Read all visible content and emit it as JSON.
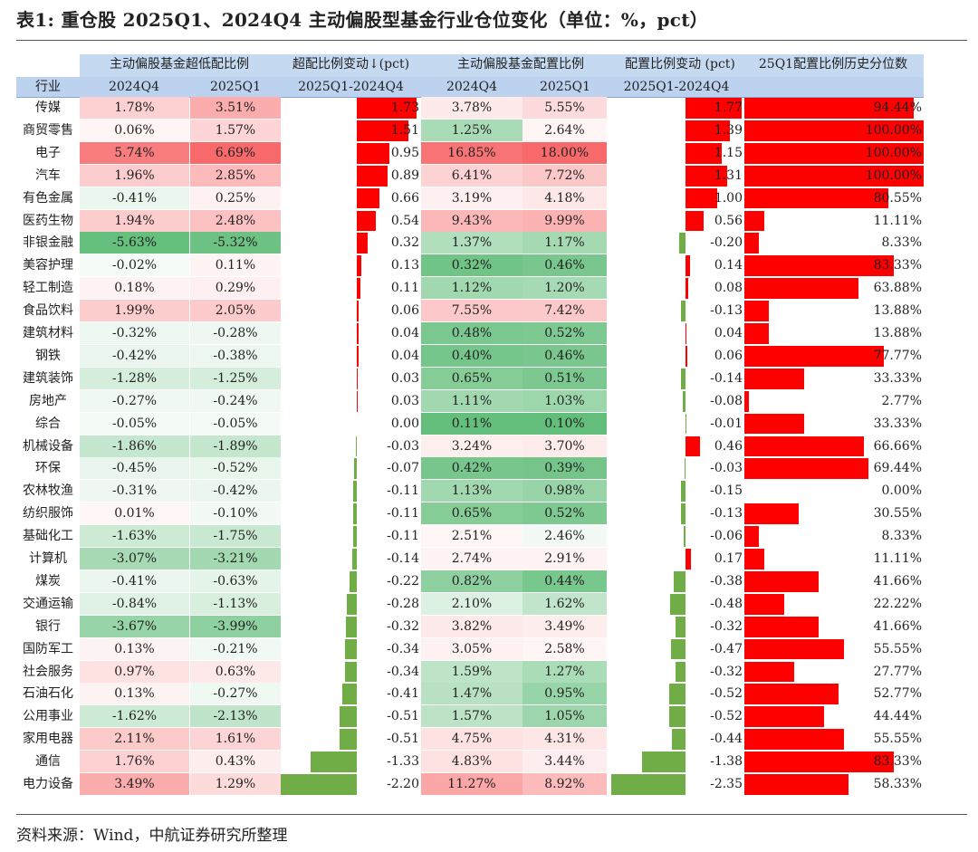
{
  "title": "表1: 重仓股 2025Q1、2024Q4 主动偏股型基金行业仓位变化（单位：%，pct）",
  "header": {
    "group1": "主动偏股基金超低配比例",
    "group2": "超配比例变动↓(pct)",
    "group3": "主动偏股基金配置比例",
    "group4": "配置比例变动 (pct)",
    "group5": "25Q1配置比例历史分位数",
    "industry": "行业",
    "q4": "2024Q4",
    "q1": "2025Q1",
    "delta": "2025Q1-2024Q4",
    "q4b": "2024Q4",
    "q1b": "2025Q1",
    "deltab": "2025Q1-2024Q4"
  },
  "colors": {
    "positive": "#ff0000",
    "negative": "#70ad47",
    "header": "#c5d9f1"
  },
  "rows": [
    {
      "industry": "传媒",
      "ow_q4": "1.78%",
      "ow_q1": "3.51%",
      "ow_chg": "1.73",
      "w_q4": "3.78%",
      "w_q1": "5.55%",
      "w_chg": "1.77",
      "pct": "94.44%"
    },
    {
      "industry": "商贸零售",
      "ow_q4": "0.06%",
      "ow_q1": "1.57%",
      "ow_chg": "1.51",
      "w_q4": "1.25%",
      "w_q1": "2.64%",
      "w_chg": "1.39",
      "pct": "100.00%"
    },
    {
      "industry": "电子",
      "ow_q4": "5.74%",
      "ow_q1": "6.69%",
      "ow_chg": "0.95",
      "w_q4": "16.85%",
      "w_q1": "18.00%",
      "w_chg": "1.15",
      "pct": "100.00%"
    },
    {
      "industry": "汽车",
      "ow_q4": "1.96%",
      "ow_q1": "2.85%",
      "ow_chg": "0.89",
      "w_q4": "6.41%",
      "w_q1": "7.72%",
      "w_chg": "1.31",
      "pct": "100.00%"
    },
    {
      "industry": "有色金属",
      "ow_q4": "-0.41%",
      "ow_q1": "0.25%",
      "ow_chg": "0.66",
      "w_q4": "3.19%",
      "w_q1": "4.18%",
      "w_chg": "1.00",
      "pct": "80.55%"
    },
    {
      "industry": "医药生物",
      "ow_q4": "1.94%",
      "ow_q1": "2.48%",
      "ow_chg": "0.54",
      "w_q4": "9.43%",
      "w_q1": "9.99%",
      "w_chg": "0.56",
      "pct": "11.11%"
    },
    {
      "industry": "非银金融",
      "ow_q4": "-5.63%",
      "ow_q1": "-5.32%",
      "ow_chg": "0.32",
      "w_q4": "1.37%",
      "w_q1": "1.17%",
      "w_chg": "-0.20",
      "pct": "8.33%"
    },
    {
      "industry": "美容护理",
      "ow_q4": "-0.02%",
      "ow_q1": "0.11%",
      "ow_chg": "0.13",
      "w_q4": "0.32%",
      "w_q1": "0.46%",
      "w_chg": "0.14",
      "pct": "83.33%"
    },
    {
      "industry": "轻工制造",
      "ow_q4": "0.18%",
      "ow_q1": "0.29%",
      "ow_chg": "0.11",
      "w_q4": "1.12%",
      "w_q1": "1.20%",
      "w_chg": "0.08",
      "pct": "63.88%"
    },
    {
      "industry": "食品饮料",
      "ow_q4": "1.99%",
      "ow_q1": "2.05%",
      "ow_chg": "0.06",
      "w_q4": "7.55%",
      "w_q1": "7.42%",
      "w_chg": "-0.13",
      "pct": "13.88%"
    },
    {
      "industry": "建筑材料",
      "ow_q4": "-0.32%",
      "ow_q1": "-0.28%",
      "ow_chg": "0.04",
      "w_q4": "0.48%",
      "w_q1": "0.52%",
      "w_chg": "0.04",
      "pct": "13.88%"
    },
    {
      "industry": "钢铁",
      "ow_q4": "-0.42%",
      "ow_q1": "-0.38%",
      "ow_chg": "0.04",
      "w_q4": "0.40%",
      "w_q1": "0.46%",
      "w_chg": "0.06",
      "pct": "77.77%"
    },
    {
      "industry": "建筑装饰",
      "ow_q4": "-1.28%",
      "ow_q1": "-1.25%",
      "ow_chg": "0.03",
      "w_q4": "0.65%",
      "w_q1": "0.51%",
      "w_chg": "-0.14",
      "pct": "33.33%"
    },
    {
      "industry": "房地产",
      "ow_q4": "-0.27%",
      "ow_q1": "-0.24%",
      "ow_chg": "0.03",
      "w_q4": "1.11%",
      "w_q1": "1.03%",
      "w_chg": "-0.08",
      "pct": "2.77%"
    },
    {
      "industry": "综合",
      "ow_q4": "-0.05%",
      "ow_q1": "-0.05%",
      "ow_chg": "0.00",
      "w_q4": "0.11%",
      "w_q1": "0.10%",
      "w_chg": "-0.01",
      "pct": "33.33%"
    },
    {
      "industry": "机械设备",
      "ow_q4": "-1.86%",
      "ow_q1": "-1.89%",
      "ow_chg": "-0.03",
      "w_q4": "3.24%",
      "w_q1": "3.70%",
      "w_chg": "0.46",
      "pct": "66.66%"
    },
    {
      "industry": "环保",
      "ow_q4": "-0.45%",
      "ow_q1": "-0.52%",
      "ow_chg": "-0.07",
      "w_q4": "0.42%",
      "w_q1": "0.39%",
      "w_chg": "-0.03",
      "pct": "69.44%"
    },
    {
      "industry": "农林牧渔",
      "ow_q4": "-0.31%",
      "ow_q1": "-0.42%",
      "ow_chg": "-0.11",
      "w_q4": "1.13%",
      "w_q1": "0.98%",
      "w_chg": "-0.15",
      "pct": "0.00%"
    },
    {
      "industry": "纺织服饰",
      "ow_q4": "0.01%",
      "ow_q1": "-0.10%",
      "ow_chg": "-0.11",
      "w_q4": "0.65%",
      "w_q1": "0.52%",
      "w_chg": "-0.13",
      "pct": "30.55%"
    },
    {
      "industry": "基础化工",
      "ow_q4": "-1.63%",
      "ow_q1": "-1.75%",
      "ow_chg": "-0.11",
      "w_q4": "2.51%",
      "w_q1": "2.46%",
      "w_chg": "-0.06",
      "pct": "8.33%"
    },
    {
      "industry": "计算机",
      "ow_q4": "-3.07%",
      "ow_q1": "-3.21%",
      "ow_chg": "-0.14",
      "w_q4": "2.74%",
      "w_q1": "2.91%",
      "w_chg": "0.17",
      "pct": "11.11%"
    },
    {
      "industry": "煤炭",
      "ow_q4": "-0.41%",
      "ow_q1": "-0.63%",
      "ow_chg": "-0.22",
      "w_q4": "0.82%",
      "w_q1": "0.44%",
      "w_chg": "-0.38",
      "pct": "41.66%"
    },
    {
      "industry": "交通运输",
      "ow_q4": "-0.84%",
      "ow_q1": "-1.13%",
      "ow_chg": "-0.28",
      "w_q4": "2.10%",
      "w_q1": "1.62%",
      "w_chg": "-0.48",
      "pct": "22.22%"
    },
    {
      "industry": "银行",
      "ow_q4": "-3.67%",
      "ow_q1": "-3.99%",
      "ow_chg": "-0.32",
      "w_q4": "3.82%",
      "w_q1": "3.49%",
      "w_chg": "-0.32",
      "pct": "41.66%"
    },
    {
      "industry": "国防军工",
      "ow_q4": "0.13%",
      "ow_q1": "-0.21%",
      "ow_chg": "-0.34",
      "w_q4": "3.05%",
      "w_q1": "2.58%",
      "w_chg": "-0.47",
      "pct": "55.55%"
    },
    {
      "industry": "社会服务",
      "ow_q4": "0.97%",
      "ow_q1": "0.63%",
      "ow_chg": "-0.34",
      "w_q4": "1.59%",
      "w_q1": "1.27%",
      "w_chg": "-0.32",
      "pct": "27.77%"
    },
    {
      "industry": "石油石化",
      "ow_q4": "0.13%",
      "ow_q1": "-0.27%",
      "ow_chg": "-0.41",
      "w_q4": "1.47%",
      "w_q1": "0.95%",
      "w_chg": "-0.52",
      "pct": "52.77%"
    },
    {
      "industry": "公用事业",
      "ow_q4": "-1.62%",
      "ow_q1": "-2.13%",
      "ow_chg": "-0.51",
      "w_q4": "1.57%",
      "w_q1": "1.05%",
      "w_chg": "-0.52",
      "pct": "44.44%"
    },
    {
      "industry": "家用电器",
      "ow_q4": "2.11%",
      "ow_q1": "1.61%",
      "ow_chg": "-0.51",
      "w_q4": "4.75%",
      "w_q1": "4.31%",
      "w_chg": "-0.44",
      "pct": "55.55%"
    },
    {
      "industry": "通信",
      "ow_q4": "1.76%",
      "ow_q1": "0.43%",
      "ow_chg": "-1.33",
      "w_q4": "4.83%",
      "w_q1": "3.44%",
      "w_chg": "-1.38",
      "pct": "83.33%"
    },
    {
      "industry": "电力设备",
      "ow_q4": "3.49%",
      "ow_q1": "1.29%",
      "ow_chg": "-2.20",
      "w_q4": "11.27%",
      "w_q1": "8.92%",
      "w_chg": "-2.35",
      "pct": "58.33%"
    }
  ],
  "footer": "资料来源：Wind，中航证券研究所整理"
}
